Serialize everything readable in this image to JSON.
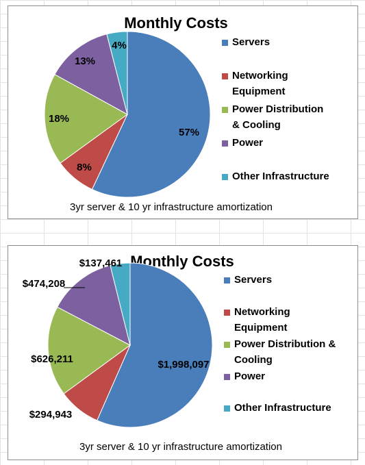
{
  "chart_data": [
    {
      "type": "pie",
      "title": "Monthly Costs",
      "caption": "3yr server & 10 yr infrastructure amortization",
      "categories": [
        "Servers",
        "Networking Equipment",
        "Power Distribution & Cooling",
        "Power",
        "Other Infrastructure"
      ],
      "values": [
        57,
        8,
        18,
        13,
        4
      ],
      "labels": [
        "57%",
        "8%",
        "18%",
        "13%",
        "4%"
      ],
      "legend_lines": [
        [
          "Servers"
        ],
        [
          "Networking",
          "Equipment"
        ],
        [
          "Power Distribution",
          "& Cooling"
        ],
        [
          "Power"
        ],
        [
          "Other Infrastructure"
        ]
      ],
      "colors": [
        "#4a7ebb",
        "#be4b48",
        "#98b954",
        "#7d60a0",
        "#46aac5"
      ],
      "legend_position": "right",
      "start_angle_deg": 0
    },
    {
      "type": "pie",
      "title": "Monthly Costs",
      "caption": "3yr server & 10 yr infrastructure amortization",
      "categories": [
        "Servers",
        "Networking Equipment",
        "Power Distribution & Cooling",
        "Power",
        "Other Infrastructure"
      ],
      "values": [
        1998097,
        294943,
        626211,
        474208,
        137461
      ],
      "labels": [
        "$1,998,097",
        "$294,943",
        "$626,211",
        "$474,208",
        "$137,461"
      ],
      "legend_lines": [
        [
          "Servers"
        ],
        [
          "Networking",
          "Equipment"
        ],
        [
          "Power Distribution &",
          "Cooling"
        ],
        [
          "Power"
        ],
        [
          "Other Infrastructure"
        ]
      ],
      "colors": [
        "#4a7ebb",
        "#be4b48",
        "#98b954",
        "#7d60a0",
        "#46aac5"
      ],
      "legend_position": "right",
      "start_angle_deg": 0
    }
  ]
}
